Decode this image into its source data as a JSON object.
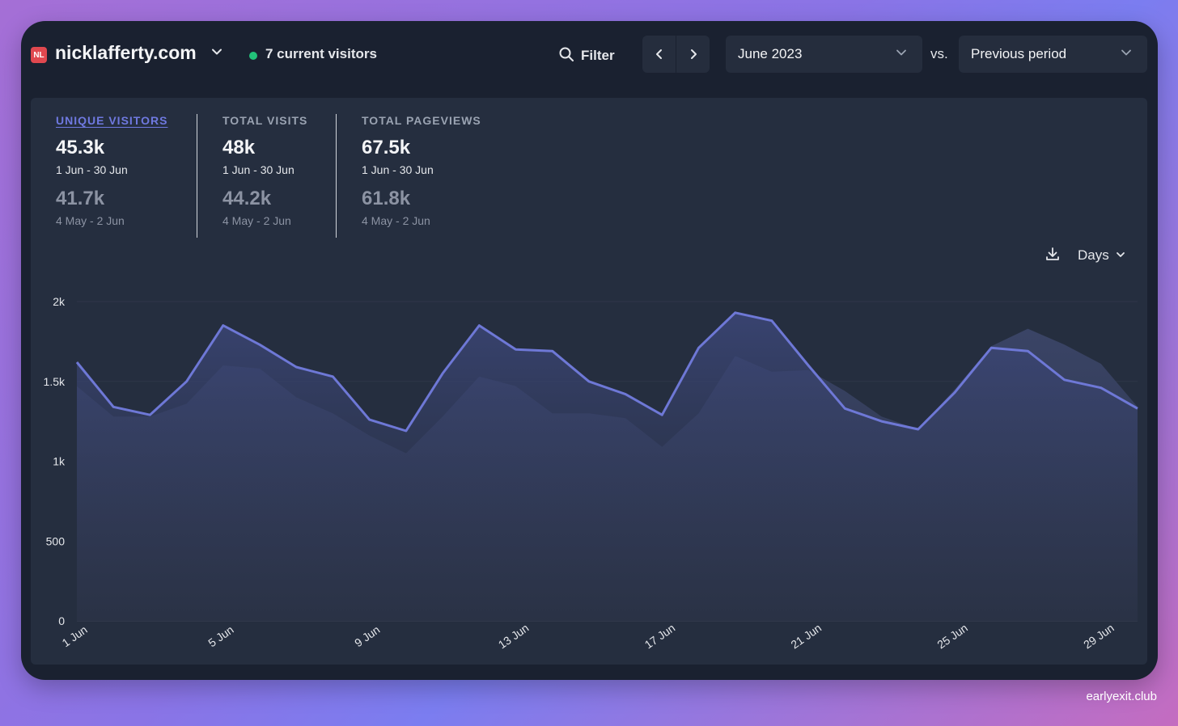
{
  "header": {
    "site_badge": "NL",
    "site_name": "nicklafferty.com",
    "current_visitors": "7 current visitors",
    "filter_label": "Filter",
    "period_value": "June 2023",
    "vs_label": "vs.",
    "compare_value": "Previous period"
  },
  "stats": [
    {
      "label": "UNIQUE VISITORS",
      "value": "45.3k",
      "range": "1 Jun - 30 Jun",
      "prev_value": "41.7k",
      "prev_range": "4 May - 2 Jun",
      "active": true
    },
    {
      "label": "TOTAL VISITS",
      "value": "48k",
      "range": "1 Jun - 30 Jun",
      "prev_value": "44.2k",
      "prev_range": "4 May - 2 Jun",
      "active": false
    },
    {
      "label": "TOTAL PAGEVIEWS",
      "value": "67.5k",
      "range": "1 Jun - 30 Jun",
      "prev_value": "61.8k",
      "prev_range": "4 May - 2 Jun",
      "active": false
    }
  ],
  "granularity": "Days",
  "footer": {
    "credit": "earlyexit.club"
  },
  "colors": {
    "current": "#6e78d6",
    "accent": "#6f79e0",
    "live": "#22c27a",
    "badge": "#e0484f"
  },
  "chart_data": {
    "type": "area",
    "ylim": [
      0,
      2000
    ],
    "yticks": [
      "0",
      "500",
      "1k",
      "1.5k",
      "2k"
    ],
    "ytick_values": [
      0,
      500,
      1000,
      1500,
      2000
    ],
    "x_tick_labels": [
      "1 Jun",
      "5 Jun",
      "9 Jun",
      "13 Jun",
      "17 Jun",
      "21 Jun",
      "25 Jun",
      "29 Jun"
    ],
    "x_tick_days": [
      1,
      5,
      9,
      13,
      17,
      21,
      25,
      29
    ],
    "x": [
      1,
      2,
      3,
      4,
      5,
      6,
      7,
      8,
      9,
      10,
      11,
      12,
      13,
      14,
      15,
      16,
      17,
      18,
      19,
      20,
      21,
      22,
      23,
      24,
      25,
      26,
      27,
      28,
      29,
      30
    ],
    "series": [
      {
        "values": [
          1620,
          1340,
          1290,
          1500,
          1850,
          1730,
          1590,
          1530,
          1260,
          1190,
          1550,
          1850,
          1700,
          1690,
          1500,
          1420,
          1290,
          1710,
          1930,
          1880,
          1600,
          1330,
          1250,
          1200,
          1430,
          1710,
          1690,
          1510,
          1460,
          1330
        ]
      },
      {
        "values": [
          1470,
          1280,
          1280,
          1360,
          1600,
          1580,
          1400,
          1300,
          1160,
          1050,
          1280,
          1530,
          1470,
          1300,
          1300,
          1270,
          1090,
          1300,
          1660,
          1560,
          1570,
          1440,
          1280,
          1200,
          1450,
          1720,
          1830,
          1730,
          1610,
          1340
        ]
      }
    ]
  }
}
